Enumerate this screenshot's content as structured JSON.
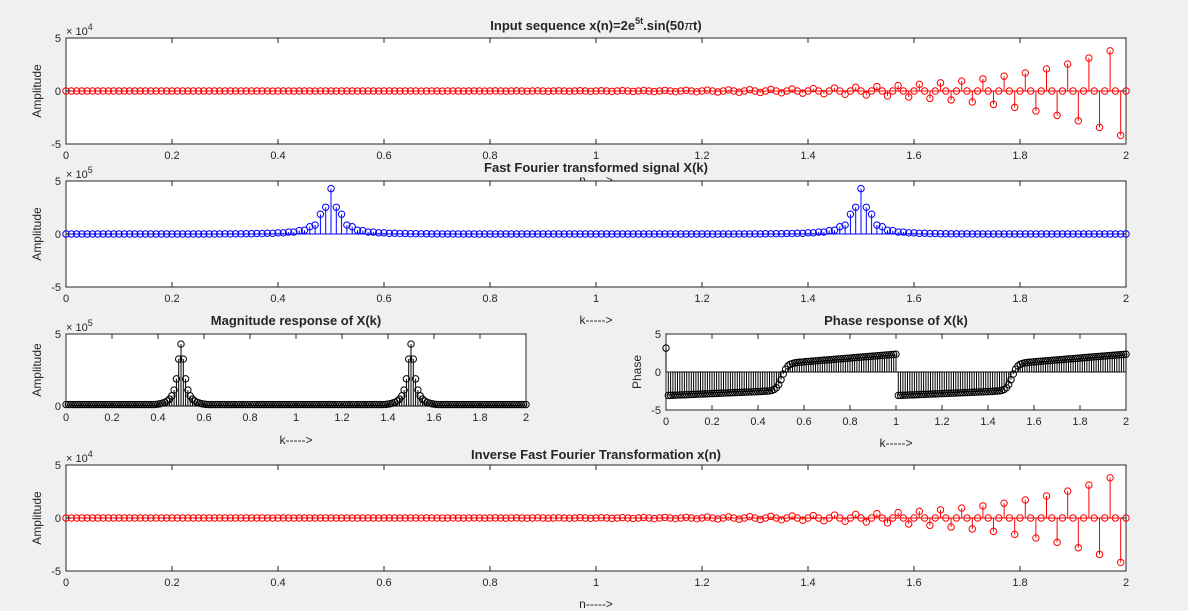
{
  "figure": {
    "background": "#f0f0f0",
    "axes_background": "#ffffff"
  },
  "chart_data": [
    {
      "id": "input",
      "type": "stem",
      "title": "Input sequence x(n)=2e^{5t}.sin(50πt)",
      "title_parts": {
        "base": "Input sequence x(n)=2e",
        "sup": "5t",
        "rest": ".sin(50",
        "pi": "π",
        "end": "t)"
      },
      "xlabel": "n----->",
      "ylabel": "Amplitude",
      "xlim": [
        0,
        2
      ],
      "ylim": [
        -5,
        5
      ],
      "y_exponent": "4",
      "xticks": [
        "0",
        "0.2",
        "0.4",
        "0.6",
        "0.8",
        "1",
        "1.2",
        "1.4",
        "1.6",
        "1.8",
        "2"
      ],
      "yticks": [
        "-5",
        "0",
        "5"
      ],
      "color": "#ff0000",
      "series": {
        "rule": "2*exp(5t)*sin(50*pi*t) on t = 0:0.01:2, in units of 10^4",
        "count": 201,
        "x_start": 0,
        "x_step": 0.01
      }
    },
    {
      "id": "fft",
      "type": "stem",
      "title": "Fast Fourier transformed signal X(k)",
      "xlabel": "k----->",
      "ylabel": "Amplitude",
      "xlim": [
        0,
        2
      ],
      "ylim": [
        -5,
        5
      ],
      "y_exponent": "5",
      "xticks": [
        "0",
        "0.2",
        "0.4",
        "0.6",
        "0.8",
        "1",
        "1.2",
        "1.4",
        "1.6",
        "1.8",
        "2"
      ],
      "yticks": [
        "-5",
        "0",
        "5"
      ],
      "color": "#0000ff",
      "series": {
        "peaks_at": [
          0.5,
          1.5
        ],
        "peak_value": 4.3,
        "count": 201
      }
    },
    {
      "id": "mag",
      "type": "stem",
      "title": "Magnitude response of X(k)",
      "xlabel": "k----->",
      "ylabel": "Amplitude",
      "xlim": [
        0,
        2
      ],
      "ylim": [
        0,
        5
      ],
      "y_exponent": "5",
      "xticks": [
        "0",
        "0.2",
        "0.4",
        "0.6",
        "0.8",
        "1",
        "1.2",
        "1.4",
        "1.6",
        "1.8",
        "2"
      ],
      "yticks": [
        "0",
        "5"
      ],
      "color": "#000000",
      "series": {
        "peaks_at": [
          0.5,
          1.5
        ],
        "peak_value": 4.3,
        "count": 201
      }
    },
    {
      "id": "phase",
      "type": "stem",
      "title": "Phase response of X(k)",
      "xlabel": "k----->",
      "ylabel": "Phase",
      "xlim": [
        0,
        2
      ],
      "ylim": [
        -5,
        5
      ],
      "y_exponent": "",
      "xticks": [
        "0",
        "0.2",
        "0.4",
        "0.6",
        "0.8",
        "1",
        "1.2",
        "1.4",
        "1.6",
        "1.8",
        "2"
      ],
      "yticks": [
        "-5",
        "0",
        "5"
      ],
      "color": "#000000",
      "series": {
        "range": [
          -3.14,
          3.14
        ],
        "transitions_at": [
          0.5,
          1.5
        ],
        "wraps_at": [
          1.0
        ],
        "count": 201
      }
    },
    {
      "id": "ifft",
      "type": "stem",
      "title": "Inverse Fast Fourier Transformation x(n)",
      "xlabel": "n----->",
      "ylabel": "Amplitude",
      "xlim": [
        0,
        2
      ],
      "ylim": [
        -5,
        5
      ],
      "y_exponent": "4",
      "xticks": [
        "0",
        "0.2",
        "0.4",
        "0.6",
        "0.8",
        "1",
        "1.2",
        "1.4",
        "1.6",
        "1.8",
        "2"
      ],
      "yticks": [
        "-5",
        "0",
        "5"
      ],
      "color": "#ff0000",
      "series": {
        "rule": "2*exp(5t)*sin(50*pi*t) on t = 0:0.01:2, in units of 10^4",
        "count": 201,
        "x_start": 0,
        "x_step": 0.01
      }
    }
  ]
}
